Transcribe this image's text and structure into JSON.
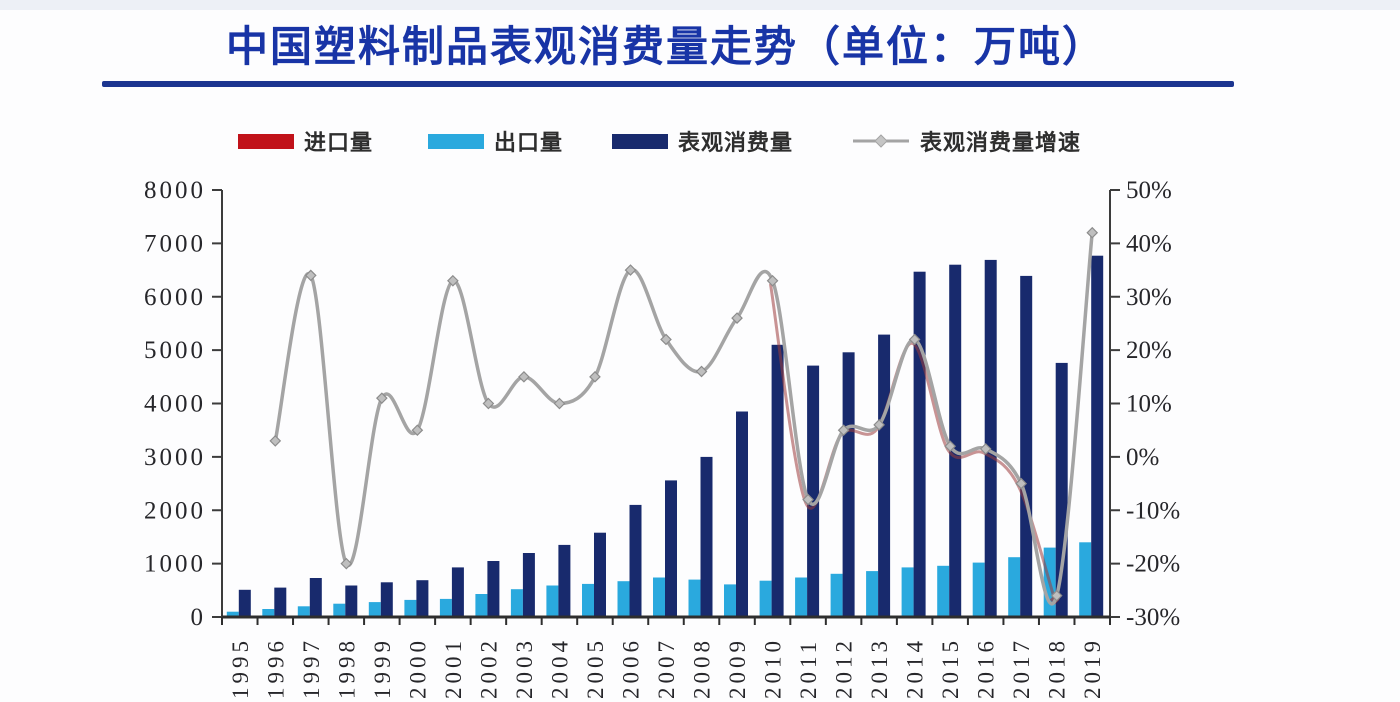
{
  "title": {
    "text": "中国塑料制品表观消费量走势（单位：万吨）",
    "color": "#1834a6"
  },
  "divider_color": "#1c3590",
  "legend": [
    {
      "key": "import",
      "label": "进口量",
      "type": "bar",
      "color": "#c1121a"
    },
    {
      "key": "export",
      "label": "出口量",
      "type": "bar",
      "color": "#2aa9de"
    },
    {
      "key": "consumption",
      "label": "表观消费量",
      "type": "bar",
      "color": "#182a6d"
    },
    {
      "key": "growth",
      "label": "表观消费量增速",
      "type": "line",
      "color": "#a4a4a4"
    }
  ],
  "chart_data": {
    "type": "bar+line combo",
    "title": "中国塑料制品表观消费量走势（单位：万吨）",
    "grid": false,
    "legend_position": "top",
    "axis_color": "#3c3c3c",
    "label_color": "#26262a",
    "categories": [
      "1995",
      "1996",
      "1997",
      "1998",
      "1999",
      "2000",
      "2001",
      "2002",
      "2003",
      "2004",
      "2005",
      "2006",
      "2007",
      "2008",
      "2009",
      "2010",
      "2011",
      "2012",
      "2013",
      "2014",
      "2015",
      "2016",
      "2017",
      "2018",
      "2019"
    ],
    "left_axis": {
      "unit": "万吨",
      "min": 0,
      "max": 8000,
      "step": 1000,
      "tick_labels": [
        "0",
        "1000",
        "2000",
        "3000",
        "4000",
        "5000",
        "6000",
        "7000",
        "8000"
      ]
    },
    "right_axis": {
      "unit": "%",
      "min": -30,
      "max": 50,
      "step": 10,
      "tick_labels": [
        "-30%",
        "-20%",
        "-10%",
        "0%",
        "10%",
        "20%",
        "30%",
        "40%",
        "50%"
      ]
    },
    "series": [
      {
        "key": "import",
        "name": "进口量",
        "type": "bar",
        "axis": "left",
        "color": "#c1121a",
        "visible_in_plot": false,
        "values": []
      },
      {
        "key": "export",
        "name": "出口量",
        "type": "bar",
        "axis": "left",
        "color": "#2aa9de",
        "values": [
          100,
          150,
          200,
          250,
          280,
          320,
          340,
          430,
          520,
          590,
          620,
          670,
          740,
          700,
          610,
          680,
          740,
          810,
          860,
          930,
          960,
          1020,
          1120,
          1300,
          1400
        ]
      },
      {
        "key": "consumption",
        "name": "表观消费量",
        "type": "bar",
        "axis": "left",
        "color": "#182a6d",
        "values": [
          510,
          550,
          730,
          590,
          650,
          690,
          930,
          1050,
          1200,
          1350,
          1580,
          2100,
          2560,
          3000,
          3850,
          5100,
          4710,
          4960,
          5290,
          6470,
          6600,
          6690,
          6390,
          4760,
          6770
        ]
      },
      {
        "key": "growth",
        "name": "表观消费量增速",
        "type": "line",
        "axis": "right",
        "color": "#a4a4a4",
        "marker": "diamond",
        "marker_fill": "#bfbfbf",
        "marker_stroke": "#8c8c8c",
        "start_index": 1,
        "values": [
          3,
          34,
          -20,
          11,
          5,
          33,
          10,
          15,
          10,
          15,
          35,
          22,
          16,
          26,
          33,
          -8,
          5,
          6,
          22,
          2,
          1.5,
          -5,
          -26,
          42
        ]
      }
    ],
    "overlay_line": {
      "color": "#9c3d3d",
      "from_year": 2010,
      "to_year": 2018
    }
  }
}
